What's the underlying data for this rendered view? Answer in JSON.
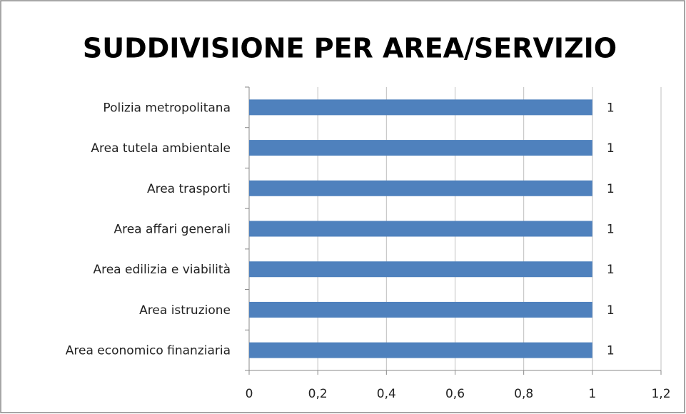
{
  "chart_data": {
    "type": "barh",
    "title": "SUDDIVISIONE PER AREA/SERVIZIO",
    "categories": [
      "Polizia metropolitana",
      "Area tutela ambientale",
      "Area trasporti",
      "Area affari generali",
      "Area edilizia e viabilità",
      "Area istruzione",
      "Area economico finanziaria"
    ],
    "values": [
      1,
      1,
      1,
      1,
      1,
      1,
      1
    ],
    "color": "#4f81bd",
    "xlim": [
      0,
      1.2
    ],
    "xticks": [
      0,
      {
        "value": 0.2,
        "label": "0,2"
      },
      {
        "value": 0.4,
        "label": "0,4"
      },
      {
        "value": 0.6,
        "label": "0,6"
      },
      {
        "value": 0.8,
        "label": "0,8"
      },
      1,
      {
        "value": 1.2,
        "label": "1,2"
      }
    ],
    "grid": true
  }
}
